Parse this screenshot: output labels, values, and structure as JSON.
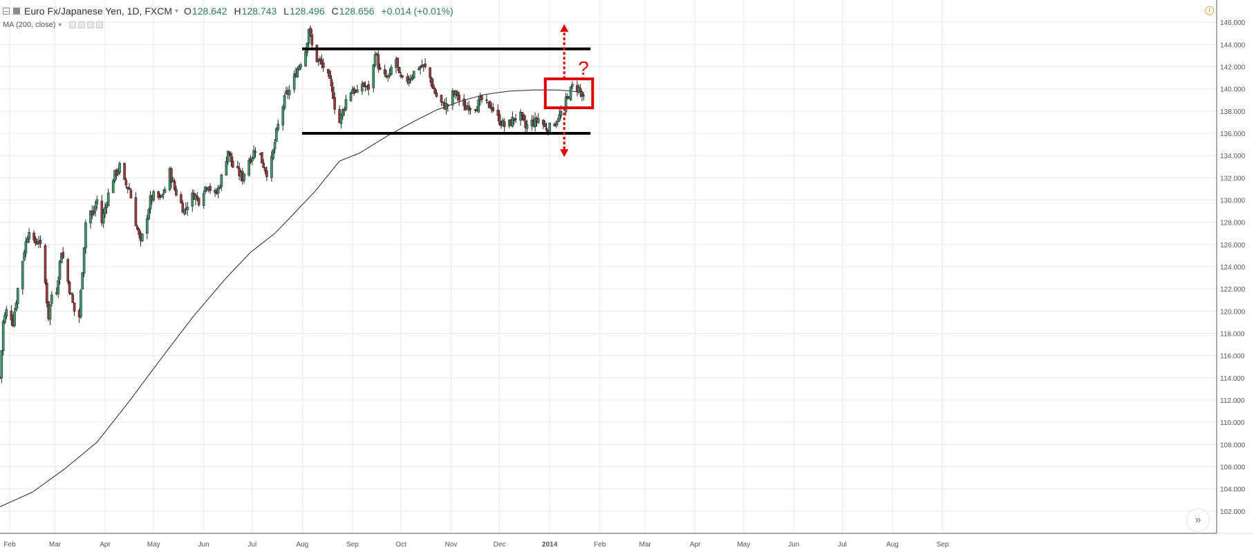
{
  "header": {
    "symbol": "Euro Fx/Japanese Yen, 1D, FXCM",
    "open_label": "O",
    "open": "128.642",
    "high_label": "H",
    "high": "128.743",
    "low_label": "L",
    "low": "128.496",
    "close_label": "C",
    "close": "128.656",
    "change": "+0.014 (+0.01%)",
    "indicator": "MA (200, close)"
  },
  "annotations": {
    "question_mark": "?"
  },
  "icons": {
    "alert": "alert-icon",
    "scroll": "fast-forward-icon"
  },
  "colors": {
    "up": "#3d9970",
    "down": "#a13a3a",
    "wick": "#222222",
    "ma": "#222222",
    "levels": "#000000",
    "highlight": "#e00000",
    "grid": "#eaeaea"
  },
  "chart_data": {
    "type": "candlestick",
    "instrument": "Euro Fx/Japanese Yen",
    "timeframe": "1D",
    "ylim": [
      100,
      148
    ],
    "y_ticks": [
      "146.000",
      "144.000",
      "142.000",
      "140.000",
      "138.000",
      "136.000",
      "134.000",
      "132.000",
      "130.000",
      "128.000",
      "126.000",
      "124.000",
      "122.000",
      "120.000",
      "118.000",
      "116.000",
      "114.000",
      "112.000",
      "110.000",
      "108.000",
      "106.000",
      "104.000",
      "102.000"
    ],
    "x_ticks": [
      "Feb",
      "Mar",
      "Apr",
      "May",
      "Jun",
      "Jul",
      "Aug",
      "Sep",
      "Oct",
      "Nov",
      "Dec",
      "2014",
      "Feb",
      "Mar",
      "Apr",
      "May",
      "Jun",
      "Jul",
      "Aug",
      "Sep"
    ],
    "price_path": [
      [
        0,
        114.0
      ],
      [
        2,
        119.0
      ],
      [
        5,
        120.5
      ],
      [
        8,
        119.0
      ],
      [
        11,
        122.0
      ],
      [
        15,
        125.5
      ],
      [
        18,
        127.5
      ],
      [
        21,
        126.0
      ],
      [
        24,
        126.5
      ],
      [
        27,
        124.0
      ],
      [
        30,
        119.5
      ],
      [
        32,
        121.5
      ],
      [
        35,
        122.0
      ],
      [
        38,
        125.5
      ],
      [
        40,
        124.0
      ],
      [
        43,
        122.0
      ],
      [
        46,
        120.0
      ],
      [
        49,
        119.5
      ],
      [
        52,
        126.0
      ],
      [
        54,
        130.0
      ],
      [
        57,
        128.5
      ],
      [
        60,
        130.0
      ],
      [
        63,
        128.0
      ],
      [
        66,
        130.0
      ],
      [
        70,
        132.0
      ],
      [
        74,
        133.0
      ],
      [
        77,
        131.5
      ],
      [
        80,
        131.0
      ],
      [
        84,
        128.0
      ],
      [
        87,
        126.0
      ],
      [
        90,
        128.0
      ],
      [
        93,
        130.0
      ],
      [
        96,
        130.5
      ],
      [
        99,
        130.0
      ],
      [
        102,
        131.0
      ],
      [
        105,
        132.5
      ],
      [
        108,
        131.0
      ],
      [
        111,
        130.0
      ],
      [
        114,
        129.0
      ],
      [
        117,
        130.0
      ],
      [
        120,
        130.5
      ],
      [
        123,
        130.0
      ],
      [
        126,
        131.0
      ],
      [
        129,
        131.5
      ],
      [
        132,
        130.0
      ],
      [
        135,
        131.0
      ],
      [
        138,
        132.5
      ],
      [
        141,
        134.5
      ],
      [
        144,
        133.0
      ],
      [
        147,
        132.5
      ],
      [
        150,
        132.0
      ],
      [
        153,
        133.5
      ],
      [
        156,
        134.0
      ],
      [
        159,
        135.0
      ],
      [
        162,
        133.5
      ],
      [
        165,
        132.5
      ],
      [
        168,
        133.5
      ],
      [
        171,
        136.0
      ],
      [
        174,
        138.0
      ],
      [
        177,
        139.5
      ],
      [
        180,
        140.0
      ],
      [
        183,
        141.5
      ],
      [
        186,
        142.5
      ],
      [
        189,
        143.5
      ],
      [
        191,
        145.5
      ],
      [
        194,
        143.0
      ],
      [
        197,
        142.5
      ],
      [
        200,
        142.0
      ],
      [
        203,
        141.0
      ],
      [
        206,
        139.5
      ],
      [
        209,
        136.5
      ],
      [
        212,
        138.0
      ],
      [
        215,
        139.5
      ],
      [
        218,
        140.0
      ],
      [
        221,
        139.5
      ],
      [
        224,
        140.5
      ],
      [
        227,
        140.0
      ],
      [
        230,
        140.5
      ],
      [
        232,
        143.5
      ],
      [
        235,
        141.5
      ],
      [
        238,
        141.0
      ],
      [
        241,
        141.0
      ],
      [
        244,
        143.5
      ],
      [
        247,
        141.0
      ],
      [
        250,
        140.5
      ],
      [
        253,
        141.0
      ],
      [
        256,
        141.5
      ],
      [
        259,
        142.0
      ],
      [
        262,
        142.0
      ],
      [
        265,
        141.5
      ],
      [
        268,
        140.0
      ],
      [
        271,
        139.0
      ],
      [
        274,
        138.5
      ],
      [
        277,
        138.5
      ],
      [
        280,
        139.5
      ],
      [
        283,
        139.5
      ],
      [
        286,
        138.0
      ],
      [
        289,
        138.5
      ],
      [
        292,
        138.5
      ],
      [
        295,
        138.5
      ],
      [
        298,
        139.0
      ],
      [
        301,
        138.5
      ],
      [
        304,
        138.5
      ],
      [
        307,
        137.5
      ],
      [
        310,
        137.0
      ],
      [
        313,
        136.5
      ],
      [
        316,
        137.0
      ],
      [
        319,
        137.5
      ],
      [
        322,
        137.5
      ],
      [
        325,
        136.5
      ],
      [
        328,
        137.0
      ],
      [
        331,
        137.0
      ],
      [
        334,
        137.5
      ],
      [
        337,
        136.5
      ],
      [
        340,
        136.5
      ],
      [
        343,
        137.0
      ],
      [
        346,
        137.5
      ],
      [
        349,
        138.5
      ],
      [
        352,
        139.5
      ],
      [
        355,
        140.5
      ],
      [
        358,
        140.0
      ],
      [
        361,
        139.0
      ]
    ],
    "ma_path": [
      [
        0,
        102.4
      ],
      [
        20,
        103.7
      ],
      [
        40,
        105.8
      ],
      [
        60,
        108.2
      ],
      [
        80,
        111.9
      ],
      [
        100,
        115.8
      ],
      [
        120,
        119.6
      ],
      [
        140,
        123.0
      ],
      [
        155,
        125.3
      ],
      [
        170,
        127.0
      ],
      [
        180,
        128.5
      ],
      [
        195,
        130.8
      ],
      [
        210,
        133.5
      ],
      [
        222,
        134.2
      ],
      [
        240,
        135.8
      ],
      [
        255,
        137.0
      ],
      [
        270,
        138.1
      ],
      [
        285,
        138.9
      ],
      [
        300,
        139.5
      ],
      [
        315,
        139.8
      ],
      [
        330,
        139.9
      ],
      [
        345,
        139.9
      ],
      [
        361,
        139.7
      ]
    ],
    "levels": [
      {
        "name": "resistance",
        "value": 143.6,
        "from_day": 186,
        "to_day": 361
      },
      {
        "name": "support",
        "value": 136.0,
        "from_day": 186,
        "to_day": 361
      }
    ],
    "highlight_box": {
      "day_from": 336,
      "day_to": 361,
      "price_low": 138.3,
      "price_high": 140.9
    },
    "arrows": [
      {
        "direction": "up",
        "day": 349,
        "from": 140.9,
        "to": 145.7
      },
      {
        "direction": "down",
        "day": 349,
        "from": 138.3,
        "to": 134.0
      }
    ]
  }
}
